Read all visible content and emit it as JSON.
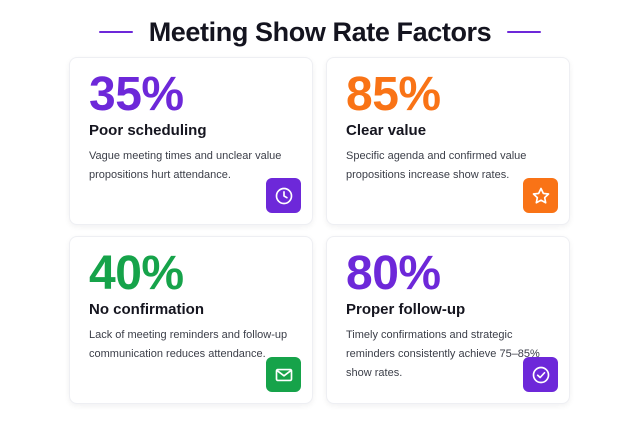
{
  "header": {
    "title": "Meeting Show Rate Factors",
    "rule_color": "#6d28d9"
  },
  "cards": [
    {
      "stat": "35%",
      "label": "Poor scheduling",
      "description": "Vague meeting times and unclear value propositions hurt attendance.",
      "accent": "#6d28d9",
      "icon": "clock-icon"
    },
    {
      "stat": "85%",
      "label": "Clear value",
      "description": "Specific agenda and confirmed value propositions increase show rates.",
      "accent": "#f97316",
      "icon": "star-icon"
    },
    {
      "stat": "40%",
      "label": "No confirmation",
      "description": "Lack of meeting reminders and follow-up communication reduces attendance.",
      "accent": "#16a34a",
      "icon": "mail-icon"
    },
    {
      "stat": "80%",
      "label": "Proper follow-up",
      "description": "Timely confirmations and strategic reminders consistently achieve 75–85% show rates.",
      "accent": "#6d28d9",
      "icon": "check-circle-icon"
    }
  ]
}
